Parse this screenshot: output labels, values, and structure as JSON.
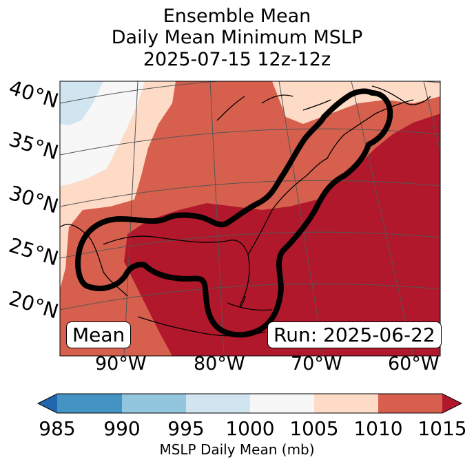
{
  "title": {
    "line1": "Ensemble Mean",
    "line2": "Daily Mean Minimum MSLP",
    "line3": "2025-07-15 12z-12z"
  },
  "map": {
    "lat_labels": [
      "40°N",
      "35°N",
      "30°N",
      "25°N",
      "20°N"
    ],
    "lon_labels": [
      "90°W",
      "80°W",
      "70°W",
      "60°W"
    ],
    "badge_left": "Mean",
    "badge_right": "Run: 2025-06-22"
  },
  "colorbar": {
    "label": "MSLP Daily Mean (mb)",
    "ticks": [
      "985",
      "990",
      "995",
      "1000",
      "1005",
      "1010",
      "1015"
    ],
    "bins": [
      {
        "range": "<985",
        "color": "#2166ac"
      },
      {
        "range": "985-990",
        "color": "#4393c3"
      },
      {
        "range": "990-995",
        "color": "#92c5de"
      },
      {
        "range": "995-1000",
        "color": "#d1e5f0"
      },
      {
        "range": "1000-1005",
        "color": "#f7f7f7"
      },
      {
        "range": "1005-1010",
        "color": "#fddbc7"
      },
      {
        "range": "1010-1015",
        "color": "#d6604d"
      },
      {
        "range": ">1015",
        "color": "#b2182b"
      }
    ]
  }
}
